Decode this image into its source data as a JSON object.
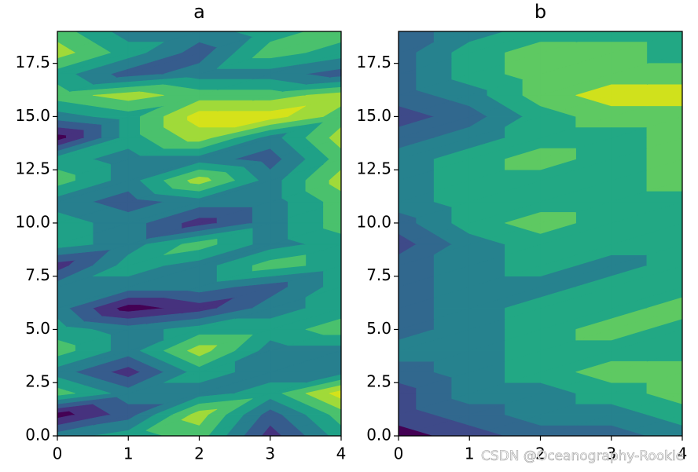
{
  "chart_data": [
    {
      "type": "contourf",
      "title": "a",
      "x": [
        0,
        1,
        2,
        3,
        4
      ],
      "y": [
        0,
        1,
        2,
        3,
        4,
        5,
        6,
        7,
        8,
        9,
        10,
        11,
        12,
        13,
        14,
        15,
        16,
        17,
        18,
        19
      ],
      "z": [
        [
          3,
          4,
          5,
          1,
          4
        ],
        [
          0,
          2,
          6,
          2,
          5
        ],
        [
          5,
          3,
          3,
          4,
          7
        ],
        [
          3,
          1,
          4,
          3,
          3
        ],
        [
          5,
          3,
          6,
          3,
          3
        ],
        [
          4,
          3,
          4,
          4,
          5
        ],
        [
          3,
          0,
          1,
          3,
          4
        ],
        [
          3,
          3,
          3,
          2,
          4
        ],
        [
          1,
          4,
          3,
          5,
          4
        ],
        [
          4,
          3,
          5,
          3,
          4
        ],
        [
          4,
          3,
          1,
          3,
          5
        ],
        [
          3,
          2,
          3,
          3,
          5
        ],
        [
          5,
          3,
          6,
          3,
          6
        ],
        [
          4,
          3,
          3,
          2,
          5
        ],
        [
          0,
          4,
          6,
          3,
          6
        ],
        [
          3,
          4,
          7,
          7,
          5
        ],
        [
          5,
          6,
          5,
          5,
          6
        ],
        [
          4,
          2,
          3,
          3,
          2
        ],
        [
          6,
          4,
          2,
          5,
          4
        ],
        [
          5,
          3,
          3,
          4,
          5
        ]
      ],
      "levels": [
        -0.5,
        0.5,
        1.5,
        2.5,
        3.5,
        4.5,
        5.5,
        6.5,
        7.5
      ],
      "colors": [
        "#440154",
        "#46327e",
        "#365c8d",
        "#277f8e",
        "#1fa187",
        "#4ac16d",
        "#a0da39",
        "#d5e21a"
      ],
      "xlim": [
        0,
        4
      ],
      "ylim": [
        0,
        19
      ],
      "xticks": [
        0,
        1,
        2,
        3,
        4
      ],
      "yticks": [
        {
          "value": 0,
          "label": "0.0"
        },
        2.5,
        {
          "value": 5,
          "label": "5.0"
        },
        7.5,
        {
          "value": 10,
          "label": "10.0"
        },
        12.5,
        {
          "value": 15,
          "label": "15.0"
        },
        17.5
      ]
    },
    {
      "type": "contourf",
      "title": "b",
      "x": [
        0,
        1,
        2,
        3,
        4
      ],
      "y": [
        0,
        1,
        2,
        3,
        4,
        5,
        6,
        7,
        8,
        9,
        10,
        11,
        12,
        13,
        14,
        15,
        16,
        17,
        18,
        19
      ],
      "z": [
        [
          0,
          1,
          2,
          2,
          3
        ],
        [
          1,
          2,
          3,
          3,
          4
        ],
        [
          1,
          3,
          3,
          4,
          5
        ],
        [
          2,
          3,
          4,
          5,
          5
        ],
        [
          3,
          3,
          4,
          4,
          4
        ],
        [
          2,
          3,
          4,
          5,
          4
        ],
        [
          2,
          3,
          4,
          4,
          5
        ],
        [
          2,
          3,
          3,
          4,
          4
        ],
        [
          2,
          3,
          4,
          3,
          4
        ],
        [
          1,
          3,
          4,
          4,
          4
        ],
        [
          2,
          4,
          5,
          4,
          4
        ],
        [
          3,
          4,
          4,
          4,
          4
        ],
        [
          3,
          4,
          4,
          4,
          5
        ],
        [
          3,
          4,
          5,
          4,
          5
        ],
        [
          2,
          3,
          4,
          4,
          5
        ],
        [
          1,
          2,
          4,
          5,
          5
        ],
        [
          2,
          3,
          5,
          6,
          6
        ],
        [
          2,
          4,
          5,
          5,
          5
        ],
        [
          2,
          4,
          5,
          5,
          4
        ],
        [
          2,
          3,
          4,
          4,
          4
        ]
      ],
      "levels": [
        -0.5,
        0.5,
        1.5,
        2.5,
        3.5,
        4.5,
        5.5,
        6.5
      ],
      "colors": [
        "#440154",
        "#3e4a89",
        "#31688e",
        "#26828e",
        "#22a884",
        "#5ec962",
        "#d0e11c"
      ],
      "xlim": [
        0,
        4
      ],
      "ylim": [
        0,
        19
      ],
      "xticks": [
        0,
        1,
        2,
        3,
        4
      ],
      "yticks": [
        {
          "value": 0,
          "label": "0.0"
        },
        2.5,
        {
          "value": 5,
          "label": "5.0"
        },
        7.5,
        {
          "value": 10,
          "label": "10.0"
        },
        12.5,
        {
          "value": 15,
          "label": "15.0"
        },
        17.5
      ]
    }
  ],
  "watermark": "CSDN @Oceanography-Rookie"
}
